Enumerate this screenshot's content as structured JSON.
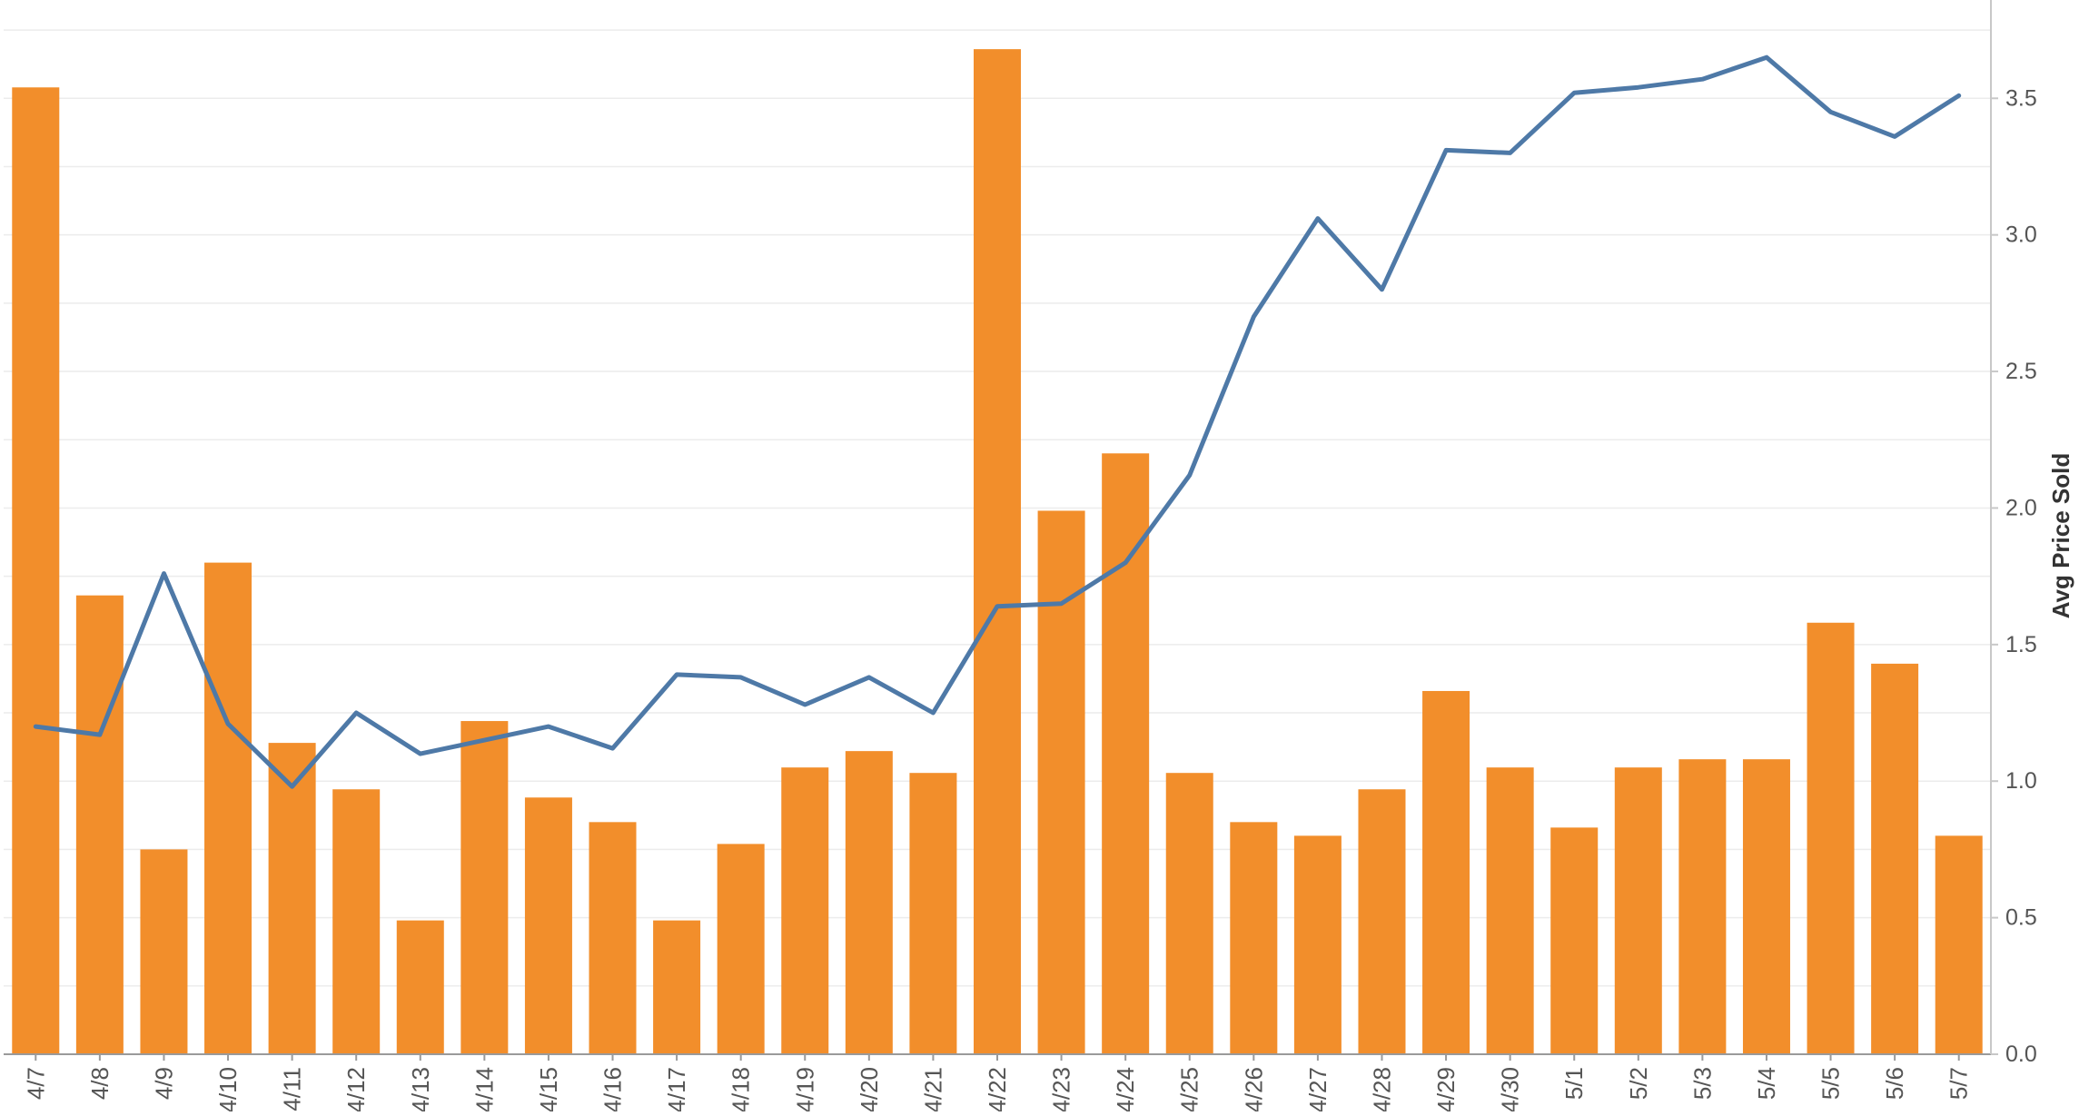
{
  "chart_data": {
    "type": "bar+line",
    "categories": [
      "4/7",
      "4/8",
      "4/9",
      "4/10",
      "4/11",
      "4/12",
      "4/13",
      "4/14",
      "4/15",
      "4/16",
      "4/17",
      "4/18",
      "4/19",
      "4/20",
      "4/21",
      "4/22",
      "4/23",
      "4/24",
      "4/25",
      "4/26",
      "4/27",
      "4/28",
      "4/29",
      "4/30",
      "5/1",
      "5/2",
      "5/3",
      "5/4",
      "5/5",
      "5/6",
      "5/7"
    ],
    "series": [
      {
        "type": "bar",
        "axis": "left-hidden",
        "color": "#f28e2b",
        "values": [
          3.54,
          1.68,
          0.75,
          1.8,
          1.14,
          0.97,
          0.49,
          1.22,
          0.94,
          0.85,
          0.49,
          0.77,
          1.05,
          1.11,
          1.03,
          3.68,
          1.99,
          2.2,
          1.03,
          0.85,
          0.8,
          0.97,
          1.33,
          1.05,
          0.83,
          1.05,
          1.08,
          1.08,
          1.58,
          1.43,
          0.8
        ]
      },
      {
        "type": "line",
        "axis": "right",
        "color": "#4e79a7",
        "values": [
          1.2,
          1.17,
          1.76,
          1.21,
          0.98,
          1.25,
          1.1,
          1.15,
          1.2,
          1.12,
          1.39,
          1.38,
          1.28,
          1.38,
          1.25,
          1.64,
          1.65,
          1.8,
          2.12,
          2.7,
          3.06,
          2.8,
          3.31,
          3.3,
          3.52,
          3.54,
          3.57,
          3.65,
          3.45,
          3.36,
          3.51
        ]
      }
    ],
    "right_axis": {
      "label": "Avg Price Sold",
      "ticks": [
        "3.5",
        "3.0",
        "2.5",
        "2.0",
        "1.5",
        "1.0",
        "0.5",
        "0.0"
      ],
      "ylim": [
        0,
        3.86
      ]
    },
    "grid": true,
    "legend": "none"
  }
}
